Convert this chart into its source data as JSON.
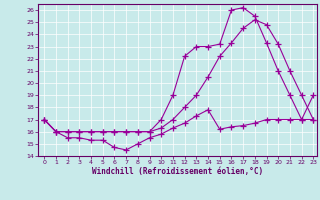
{
  "xlabel": "Windchill (Refroidissement éolien,°C)",
  "bg_color": "#c8eaea",
  "line_color": "#990099",
  "xlim_min": -0.5,
  "xlim_max": 23.3,
  "ylim_min": 14,
  "ylim_max": 26.5,
  "xticks": [
    0,
    1,
    2,
    3,
    4,
    5,
    6,
    7,
    8,
    9,
    10,
    11,
    12,
    13,
    14,
    15,
    16,
    17,
    18,
    19,
    20,
    21,
    22,
    23
  ],
  "yticks": [
    14,
    15,
    16,
    17,
    18,
    19,
    20,
    21,
    22,
    23,
    24,
    25,
    26
  ],
  "curve1_x": [
    0,
    1,
    2,
    3,
    4,
    5,
    6,
    7,
    8,
    9,
    10,
    11,
    12,
    13,
    14,
    15,
    16,
    17,
    18,
    19,
    20,
    21,
    22,
    23
  ],
  "curve1_y": [
    17.0,
    16.0,
    15.5,
    15.5,
    15.3,
    15.3,
    14.7,
    14.5,
    15.0,
    15.5,
    15.8,
    16.3,
    16.7,
    17.3,
    17.8,
    16.2,
    16.4,
    16.5,
    16.7,
    17.0,
    17.0,
    17.0,
    17.0,
    17.0
  ],
  "curve2_x": [
    0,
    1,
    2,
    3,
    4,
    5,
    6,
    7,
    8,
    9,
    10,
    11,
    12,
    13,
    14,
    15,
    16,
    17,
    18,
    19,
    20,
    21,
    22,
    23
  ],
  "curve2_y": [
    17.0,
    16.0,
    16.0,
    16.0,
    16.0,
    16.0,
    16.0,
    16.0,
    16.0,
    16.0,
    16.3,
    17.0,
    18.0,
    19.0,
    20.5,
    22.2,
    23.3,
    24.5,
    25.2,
    24.8,
    23.2,
    21.0,
    19.0,
    17.0
  ],
  "curve3_x": [
    0,
    1,
    2,
    3,
    4,
    5,
    6,
    7,
    8,
    9,
    10,
    11,
    12,
    13,
    14,
    15,
    16,
    17,
    18,
    19,
    20,
    21,
    22,
    23
  ],
  "curve3_y": [
    17.0,
    16.0,
    16.0,
    16.0,
    16.0,
    16.0,
    16.0,
    16.0,
    16.0,
    16.0,
    17.0,
    19.0,
    22.2,
    23.0,
    23.0,
    23.2,
    26.0,
    26.2,
    25.5,
    23.3,
    21.0,
    19.0,
    17.0,
    19.0
  ]
}
